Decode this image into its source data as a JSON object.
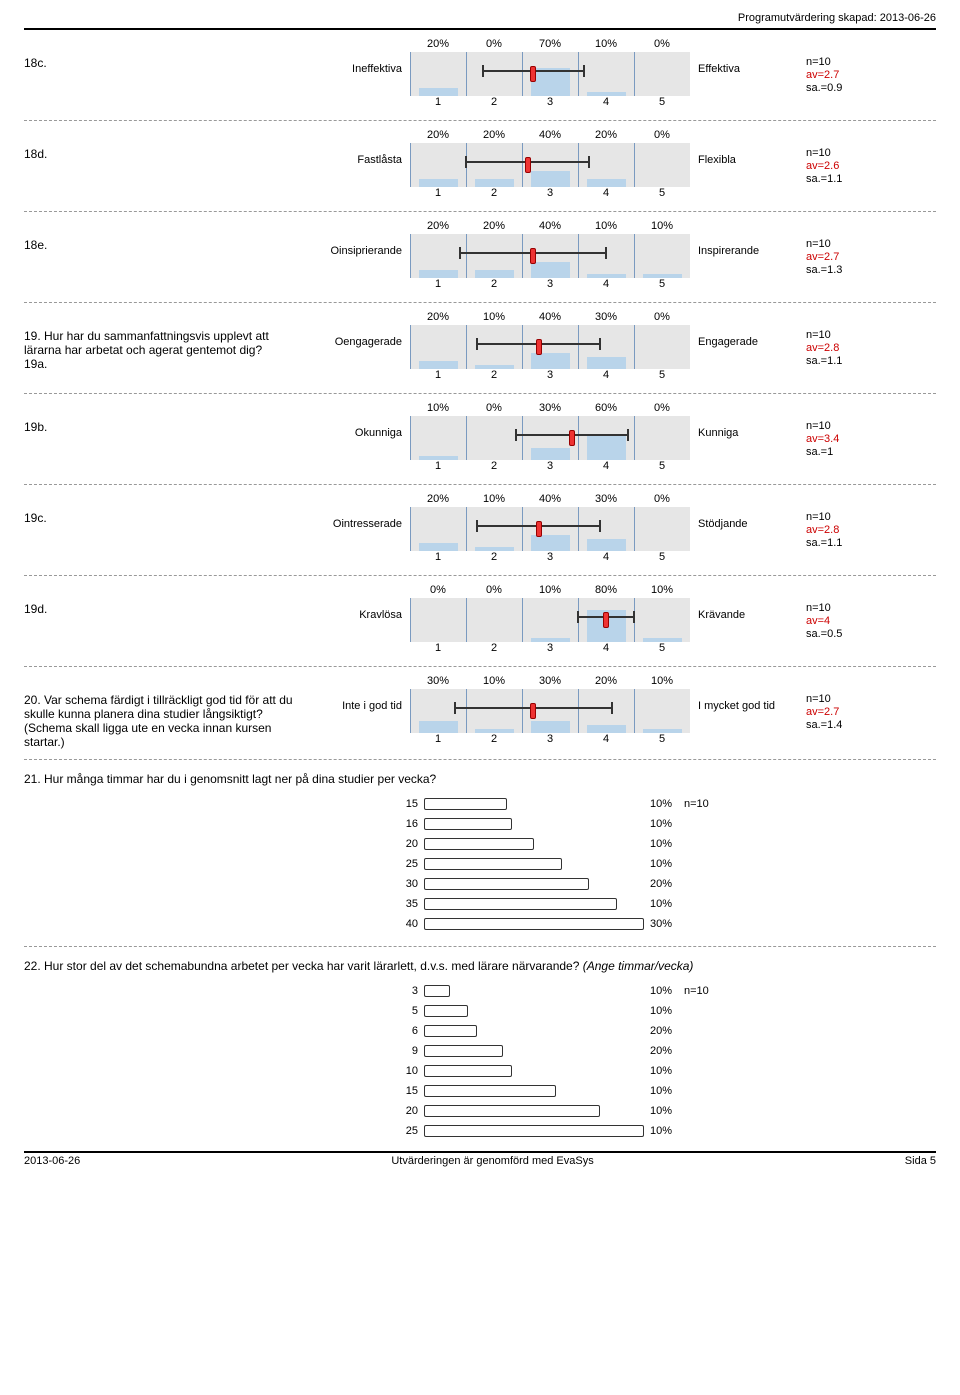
{
  "header": {
    "right": "Programutvärdering skapad: 2013-06-26"
  },
  "footer": {
    "left": "2013-06-26",
    "center": "Utvärderingen är genomförd med EvaSys",
    "right": "Sida 5"
  },
  "likert_chart": {
    "x_ticks": [
      "1",
      "2",
      "3",
      "4",
      "5"
    ],
    "xmin": 1,
    "xmax": 5,
    "bar_color": "#b9d4ea",
    "line_color": "#7a9ac0",
    "bg_color": "#e6e6e6",
    "mark_color": "#e33"
  },
  "questions": [
    {
      "qnum": "18c.",
      "qtext": "",
      "left": "Ineffektiva",
      "right": "Effektiva",
      "pcts": [
        "20%",
        "0%",
        "70%",
        "10%",
        "0%"
      ],
      "vals": [
        20,
        0,
        70,
        10,
        0
      ],
      "stats": {
        "n": "n=10",
        "av": "av=2.7",
        "sa": "sa.=0.9"
      },
      "mean": 2.7,
      "sd": 0.9
    },
    {
      "qnum": "18d.",
      "qtext": "",
      "left": "Fastlåsta",
      "right": "Flexibla",
      "pcts": [
        "20%",
        "20%",
        "40%",
        "20%",
        "0%"
      ],
      "vals": [
        20,
        20,
        40,
        20,
        0
      ],
      "stats": {
        "n": "n=10",
        "av": "av=2.6",
        "sa": "sa.=1.1"
      },
      "mean": 2.6,
      "sd": 1.1
    },
    {
      "qnum": "18e.",
      "qtext": "",
      "left": "Oinsiprierande",
      "right": "Inspirerande",
      "pcts": [
        "20%",
        "20%",
        "40%",
        "10%",
        "10%"
      ],
      "vals": [
        20,
        20,
        40,
        10,
        10
      ],
      "stats": {
        "n": "n=10",
        "av": "av=2.7",
        "sa": "sa.=1.3"
      },
      "mean": 2.7,
      "sd": 1.3
    },
    {
      "qnum": "19. Hur har du sammanfattningsvis upplevt att lärarna har arbetat och agerat gentemot dig?",
      "qtext": "19a.",
      "left": "Oengagerade",
      "right": "Engagerade",
      "pcts": [
        "20%",
        "10%",
        "40%",
        "30%",
        "0%"
      ],
      "vals": [
        20,
        10,
        40,
        30,
        0
      ],
      "stats": {
        "n": "n=10",
        "av": "av=2.8",
        "sa": "sa.=1.1"
      },
      "mean": 2.8,
      "sd": 1.1,
      "combined": true
    },
    {
      "qnum": "19b.",
      "qtext": "",
      "left": "Okunniga",
      "right": "Kunniga",
      "pcts": [
        "10%",
        "0%",
        "30%",
        "60%",
        "0%"
      ],
      "vals": [
        10,
        0,
        30,
        60,
        0
      ],
      "stats": {
        "n": "n=10",
        "av": "av=3.4",
        "sa": "sa.=1"
      },
      "mean": 3.4,
      "sd": 1.0
    },
    {
      "qnum": "19c.",
      "qtext": "",
      "left": "Ointresserade",
      "right": "Stödjande",
      "pcts": [
        "20%",
        "10%",
        "40%",
        "30%",
        "0%"
      ],
      "vals": [
        20,
        10,
        40,
        30,
        0
      ],
      "stats": {
        "n": "n=10",
        "av": "av=2.8",
        "sa": "sa.=1.1"
      },
      "mean": 2.8,
      "sd": 1.1
    },
    {
      "qnum": "19d.",
      "qtext": "",
      "left": "Kravlösa",
      "right": "Krävande",
      "pcts": [
        "0%",
        "0%",
        "10%",
        "80%",
        "10%"
      ],
      "vals": [
        0,
        0,
        10,
        80,
        10
      ],
      "stats": {
        "n": "n=10",
        "av": "av=4",
        "sa": "sa.=0.5"
      },
      "mean": 4.0,
      "sd": 0.5
    },
    {
      "qnum": "20. Var schema färdigt i tillräckligt god tid för att du skulle kunna planera dina studier långsiktigt? (Schema skall ligga ute en vecka innan kursen startar.)",
      "qtext": "",
      "left": "Inte i god tid",
      "right": "I mycket god tid",
      "pcts": [
        "30%",
        "10%",
        "30%",
        "20%",
        "10%"
      ],
      "vals": [
        30,
        10,
        30,
        20,
        10
      ],
      "stats": {
        "n": "n=10",
        "av": "av=2.7",
        "sa": "sa.=1.4"
      },
      "mean": 2.7,
      "sd": 1.4,
      "wide": true
    }
  ],
  "q21": {
    "heading": "21. Hur många timmar har du i genomsnitt lagt ner på dina studier per vecka?",
    "side": "n=10",
    "max": 40,
    "rows": [
      {
        "label": "15",
        "val": 15,
        "pct": "10%"
      },
      {
        "label": "16",
        "val": 16,
        "pct": "10%"
      },
      {
        "label": "20",
        "val": 20,
        "pct": "10%"
      },
      {
        "label": "25",
        "val": 25,
        "pct": "10%"
      },
      {
        "label": "30",
        "val": 30,
        "pct": "20%"
      },
      {
        "label": "35",
        "val": 35,
        "pct": "10%"
      },
      {
        "label": "40",
        "val": 40,
        "pct": "30%"
      }
    ]
  },
  "q22": {
    "heading": "22. Hur stor del av det schemabundna arbetet per vecka har varit lärarlett, d.v.s. med lärare närvarande? ",
    "heading_ital": "(Ange timmar/vecka)",
    "side": "n=10",
    "max": 25,
    "rows": [
      {
        "label": "3",
        "val": 3,
        "pct": "10%"
      },
      {
        "label": "5",
        "val": 5,
        "pct": "10%"
      },
      {
        "label": "6",
        "val": 6,
        "pct": "20%"
      },
      {
        "label": "9",
        "val": 9,
        "pct": "20%"
      },
      {
        "label": "10",
        "val": 10,
        "pct": "10%"
      },
      {
        "label": "15",
        "val": 15,
        "pct": "10%"
      },
      {
        "label": "20",
        "val": 20,
        "pct": "10%"
      },
      {
        "label": "25",
        "val": 25,
        "pct": "10%"
      }
    ]
  }
}
